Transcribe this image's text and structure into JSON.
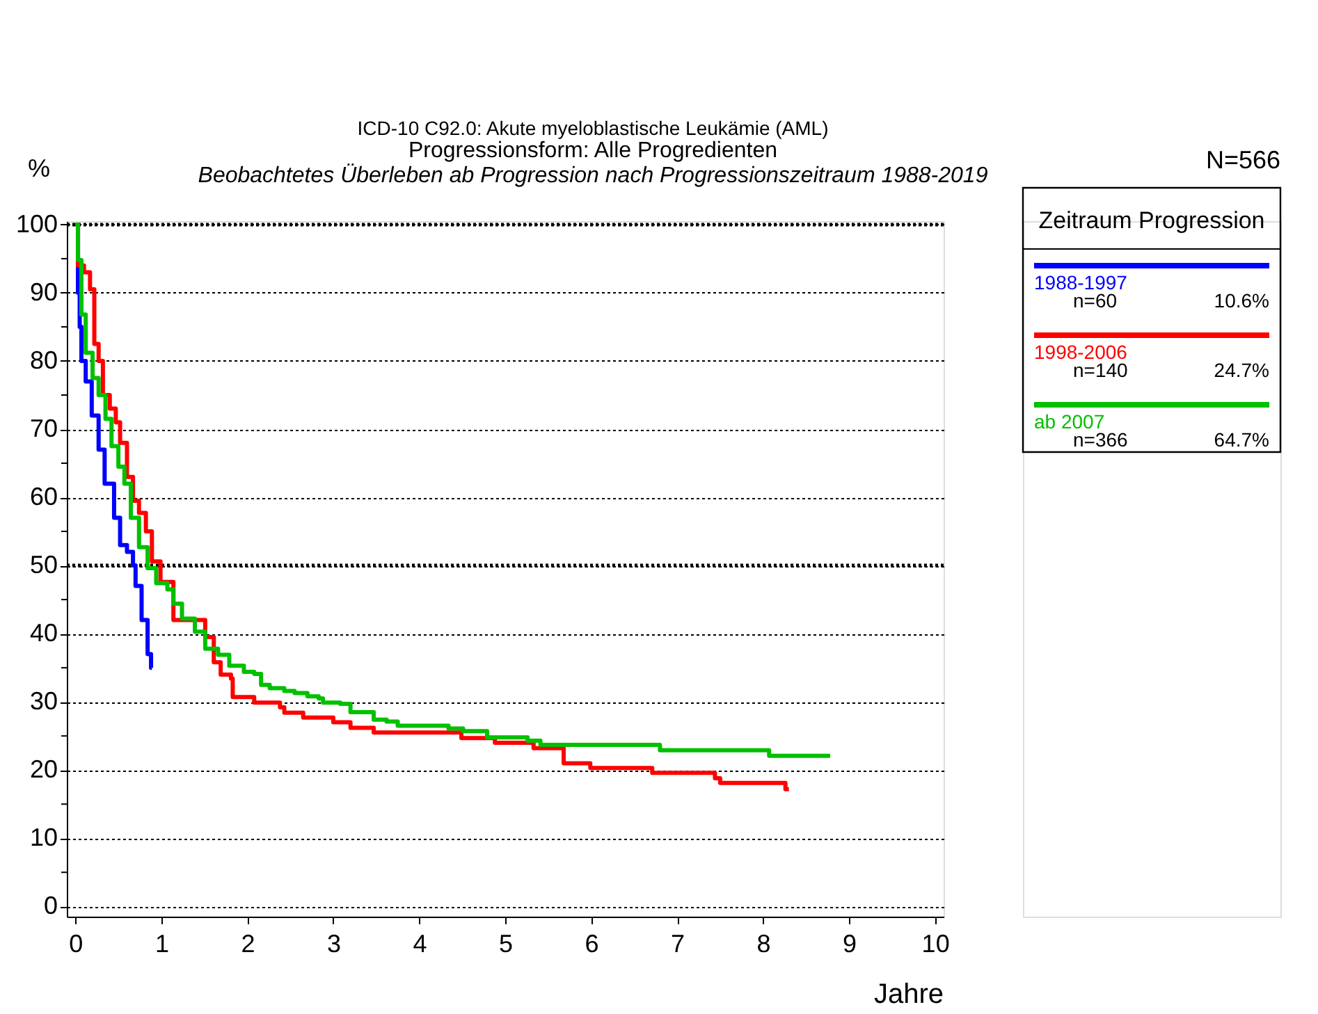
{
  "chart_data": {
    "type": "step",
    "title": [
      "ICD-10 C92.0: Akute myeloblastische Leukämie (AML)",
      "Progressionsform: Alle Progredienten"
    ],
    "subtitle": "Beobachtetes Überleben ab Progression nach Progressionszeitraum 1988-2019",
    "xlabel": "Jahre",
    "ylabel": "%",
    "legend_title": "Zeitraum Progression",
    "annotations": [
      "N=566",
      "n=60",
      "10.6%",
      "n=140",
      "24.7%",
      "n=366",
      "64.7%"
    ],
    "series": [
      {
        "name": "1988-1997",
        "color": "#0000ff",
        "x": [
          0,
          0.03,
          0.05,
          0.07,
          0.12,
          0.19,
          0.27,
          0.34,
          0.45,
          0.52,
          0.6,
          0.67,
          0.7,
          0.77,
          0.84,
          0.88,
          0.89
        ],
        "values": [
          100,
          90,
          85,
          80,
          77,
          72,
          67,
          62,
          57,
          53,
          52,
          50,
          47,
          42,
          37,
          35,
          35
        ]
      },
      {
        "name": "1998-2006",
        "color": "#ff0000",
        "x": [
          0,
          0.03,
          0.1,
          0.17,
          0.22,
          0.27,
          0.32,
          0.4,
          0.47,
          0.52,
          0.6,
          0.67,
          0.74,
          0.82,
          0.89,
          0.99,
          1.14,
          1.51,
          1.61,
          1.69,
          1.81,
          1.83,
          2.08,
          2.38,
          2.43,
          2.65,
          3.0,
          3.2,
          3.47,
          4.49,
          4.88,
          5.33,
          5.68,
          5.99,
          6.71,
          7.44,
          7.5,
          8.26,
          8.3
        ],
        "values": [
          100,
          94,
          93,
          90.5,
          82.5,
          80,
          75,
          73,
          71,
          68,
          63,
          59.5,
          57.7,
          55,
          50.6,
          47.6,
          42,
          39.5,
          35.8,
          34,
          33.4,
          30.7,
          29.9,
          29.2,
          28.4,
          27.7,
          27,
          26.2,
          25.5,
          24.7,
          24,
          23.2,
          21,
          20.3,
          19.6,
          18.8,
          18.1,
          17.2,
          17.2
        ]
      },
      {
        "name": "ab 2007",
        "color": "#00c000",
        "x": [
          0,
          0.03,
          0.07,
          0.12,
          0.2,
          0.27,
          0.35,
          0.42,
          0.5,
          0.57,
          0.645,
          0.74,
          0.84,
          0.94,
          1.07,
          1.14,
          1.24,
          1.39,
          1.51,
          1.66,
          1.79,
          1.96,
          2.08,
          2.16,
          2.26,
          2.43,
          2.55,
          2.7,
          2.83,
          2.88,
          3.08,
          3.2,
          3.47,
          3.62,
          3.75,
          4.34,
          4.51,
          4.79,
          5.26,
          5.41,
          6.8,
          8.07,
          8.78
        ],
        "values": [
          100,
          94.8,
          86.8,
          81.2,
          77.5,
          75,
          71.5,
          67.5,
          64.5,
          62,
          57,
          52.7,
          49.6,
          47.4,
          46.5,
          44.4,
          42.2,
          40.3,
          37.8,
          36.9,
          35.3,
          34.4,
          34.1,
          32.5,
          32,
          31.6,
          31.3,
          30.8,
          30.5,
          29.9,
          29.7,
          28.5,
          27.4,
          27.1,
          26.5,
          26.1,
          25.7,
          24.8,
          24.3,
          23.7,
          22.9,
          22.1,
          22.1
        ]
      }
    ],
    "xlim": [
      -0.1,
      10.1
    ],
    "ylim": [
      -1.5,
      100.5
    ],
    "xticks": [
      0,
      1,
      2,
      3,
      4,
      5,
      6,
      7,
      8,
      9,
      10
    ],
    "yticks": [
      0,
      {
        "value": 5,
        "label": null
      },
      10,
      {
        "value": 15,
        "label": null
      },
      20,
      {
        "value": 25,
        "label": null
      },
      30,
      {
        "value": 35,
        "label": null
      },
      40,
      {
        "value": 45,
        "label": null
      },
      50,
      {
        "value": 55,
        "label": null
      },
      60,
      {
        "value": 65,
        "label": null
      },
      70,
      {
        "value": 75,
        "label": null
      },
      80,
      {
        "value": 85,
        "label": null
      },
      90,
      {
        "value": 95,
        "label": null
      },
      100
    ],
    "ref_lines": [
      {
        "axis": "y",
        "value": 50,
        "label": null,
        "line_style": "dotted"
      },
      {
        "axis": "y",
        "value": 100,
        "label": null,
        "line_style": "dotted"
      }
    ],
    "grid": "y",
    "legend": "top right",
    "line_style": "solid",
    "marker": "none"
  }
}
